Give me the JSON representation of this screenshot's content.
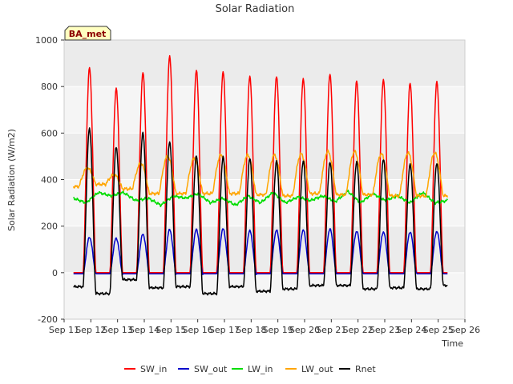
{
  "chart_data": {
    "type": "line",
    "title": "Solar Radiation",
    "xlabel": "Time",
    "ylabel": "Solar Radiation (W/m2)",
    "site_label": "BA_met",
    "xlim": [
      11,
      26
    ],
    "ylim": [
      -200,
      1000
    ],
    "x_ticks": [
      11,
      12,
      13,
      14,
      15,
      16,
      17,
      18,
      19,
      20,
      21,
      22,
      23,
      24,
      25,
      26
    ],
    "x_tick_labels": [
      "Sep 11",
      "Sep 12",
      "Sep 13",
      "Sep 14",
      "Sep 15",
      "Sep 16",
      "Sep 17",
      "Sep 18",
      "Sep 19",
      "Sep 20",
      "Sep 21",
      "Sep 22",
      "Sep 23",
      "Sep 24",
      "Sep 25",
      "Sep 26"
    ],
    "y_ticks": [
      -200,
      0,
      200,
      400,
      600,
      800,
      1000
    ],
    "grid": "horizontal bands",
    "legend_position": "bottom",
    "day_centers": [
      11.95,
      12.95,
      13.95,
      14.95,
      15.95,
      16.95,
      17.95,
      18.95,
      19.95,
      20.95,
      21.95,
      22.95,
      23.95,
      24.95
    ],
    "series": [
      {
        "name": "SW_in",
        "color": "#ff0000",
        "kind": "daily_peak",
        "peaks": [
          880,
          790,
          860,
          930,
          870,
          865,
          845,
          845,
          835,
          855,
          825,
          830,
          815,
          820
        ],
        "base": 0
      },
      {
        "name": "SW_out",
        "color": "#0000cc",
        "kind": "daily_peak",
        "peaks": [
          152,
          148,
          165,
          185,
          185,
          188,
          180,
          182,
          183,
          188,
          178,
          175,
          175,
          178
        ],
        "base": -5
      },
      {
        "name": "LW_in",
        "color": "#00dd00",
        "kind": "background",
        "values": [
          320,
          300,
          345,
          330,
          345,
          310,
          320,
          290,
          330,
          320,
          340,
          300,
          320,
          290,
          330,
          300,
          345,
          300,
          325,
          310,
          330,
          305,
          350,
          300,
          340,
          310,
          330,
          300,
          345,
          300,
          310
        ]
      },
      {
        "name": "LW_out",
        "color": "#ffa500",
        "kind": "daily_wave",
        "peaks": [
          450,
          420,
          470,
          500,
          490,
          505,
          505,
          505,
          510,
          520,
          520,
          510,
          515,
          515
        ],
        "troughs": [
          370,
          380,
          360,
          340,
          340,
          340,
          340,
          335,
          330,
          340,
          335,
          335,
          330,
          330,
          330
        ]
      },
      {
        "name": "Rnet",
        "color": "#000000",
        "kind": "daily_peak",
        "peaks": [
          620,
          540,
          600,
          560,
          500,
          495,
          490,
          478,
          480,
          475,
          478,
          490,
          468,
          472
        ],
        "night": [
          -60,
          -90,
          -30,
          -65,
          -60,
          -90,
          -60,
          -80,
          -70,
          -55,
          -55,
          -70,
          -65,
          -70,
          -55
        ]
      }
    ]
  }
}
